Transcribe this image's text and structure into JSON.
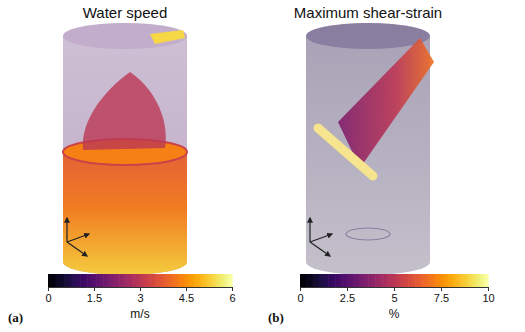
{
  "chart_data": [
    {
      "type": "volume",
      "title": "Water speed",
      "panel": "(a)",
      "colorbar": {
        "range": [
          0,
          6
        ],
        "ticks": [
          0,
          1.5,
          3,
          4.5,
          6
        ],
        "label": "m/s"
      }
    },
    {
      "type": "volume",
      "title": "Maximum shear-strain",
      "panel": "(b)",
      "colorbar": {
        "range": [
          0,
          10
        ],
        "ticks": [
          0,
          2.5,
          5,
          7.5,
          10
        ],
        "label": "%"
      }
    }
  ]
}
